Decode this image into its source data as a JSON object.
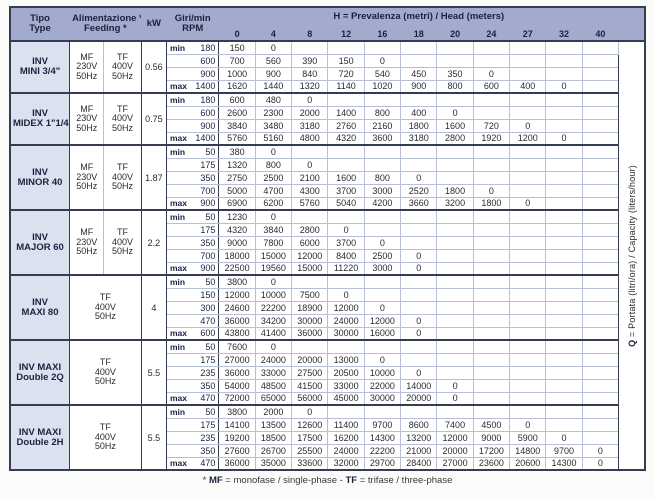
{
  "page": {
    "footnote_segments": [
      {
        "text": "* ",
        "bold": false
      },
      {
        "text": "MF",
        "bold": true
      },
      {
        "text": " = monofase / single-phase - ",
        "bold": false
      },
      {
        "text": "TF",
        "bold": true
      },
      {
        "text": " = trifase / three-phase",
        "bold": false
      }
    ],
    "colors": {
      "header_bg": "#a2abce",
      "model_bg": "#dce1ef",
      "header_text": "#1b2240",
      "grid_line": "#b6bfd8",
      "block_line": "#363c52"
    }
  },
  "table": {
    "header": {
      "type_lines": [
        "Tipo",
        "Type"
      ],
      "feeding_lines": [
        "Alimentazione *",
        "Feeding *"
      ],
      "kw_label": "kW",
      "rpm_lines": [
        "Giri/min",
        "RPM"
      ],
      "head_title_prefix": "H",
      "head_title_rest": " = Prevalenza (metri) / Head (meters)",
      "head_values": [
        "0",
        "4",
        "8",
        "12",
        "16",
        "18",
        "20",
        "24",
        "27",
        "32",
        "40"
      ],
      "q_label_prefix": "Q",
      "q_label_rest": " = Portata (litri/ora) / Capacity (liters/hour)"
    },
    "blocks": [
      {
        "model_lines": [
          "INV",
          "MINI 3/4\""
        ],
        "feeding": [
          [
            "MF",
            "230V",
            "50Hz"
          ],
          [
            "TF",
            "400V",
            "50Hz"
          ]
        ],
        "kw": "0.56",
        "rows": [
          {
            "tag": "min",
            "rpm": "180",
            "values": [
              "150",
              "0"
            ]
          },
          {
            "tag": "",
            "rpm": "600",
            "values": [
              "700",
              "560",
              "390",
              "150",
              "0"
            ]
          },
          {
            "tag": "",
            "rpm": "900",
            "values": [
              "1000",
              "900",
              "840",
              "720",
              "540",
              "450",
              "350",
              "0"
            ]
          },
          {
            "tag": "max",
            "rpm": "1400",
            "values": [
              "1620",
              "1440",
              "1320",
              "1140",
              "1020",
              "900",
              "800",
              "600",
              "400",
              "0"
            ]
          }
        ]
      },
      {
        "model_lines": [
          "INV",
          "MIDEX 1\"1/4"
        ],
        "feeding": [
          [
            "MF",
            "230V",
            "50Hz"
          ],
          [
            "TF",
            "400V",
            "50Hz"
          ]
        ],
        "kw": "0.75",
        "rows": [
          {
            "tag": "min",
            "rpm": "180",
            "values": [
              "600",
              "480",
              "0"
            ]
          },
          {
            "tag": "",
            "rpm": "600",
            "values": [
              "2600",
              "2300",
              "2000",
              "1400",
              "800",
              "400",
              "0"
            ]
          },
          {
            "tag": "",
            "rpm": "900",
            "values": [
              "3840",
              "3480",
              "3180",
              "2760",
              "2160",
              "1800",
              "1600",
              "720",
              "0"
            ]
          },
          {
            "tag": "max",
            "rpm": "1400",
            "values": [
              "5760",
              "5160",
              "4800",
              "4320",
              "3600",
              "3180",
              "2800",
              "1920",
              "1200",
              "0"
            ]
          }
        ]
      },
      {
        "model_lines": [
          "INV",
          "MINOR 40"
        ],
        "feeding": [
          [
            "MF",
            "230V",
            "50Hz"
          ],
          [
            "TF",
            "400V",
            "50Hz"
          ]
        ],
        "kw": "1.87",
        "rows": [
          {
            "tag": "min",
            "rpm": "50",
            "values": [
              "380",
              "0"
            ]
          },
          {
            "tag": "",
            "rpm": "175",
            "values": [
              "1320",
              "800",
              "0"
            ]
          },
          {
            "tag": "",
            "rpm": "350",
            "values": [
              "2750",
              "2500",
              "2100",
              "1600",
              "800",
              "0"
            ]
          },
          {
            "tag": "",
            "rpm": "700",
            "values": [
              "5000",
              "4700",
              "4300",
              "3700",
              "3000",
              "2520",
              "1800",
              "0"
            ]
          },
          {
            "tag": "max",
            "rpm": "900",
            "values": [
              "6900",
              "6200",
              "5760",
              "5040",
              "4200",
              "3660",
              "3200",
              "1800",
              "0"
            ]
          }
        ]
      },
      {
        "model_lines": [
          "INV",
          "MAJOR 60"
        ],
        "feeding": [
          [
            "MF",
            "230V",
            "50Hz"
          ],
          [
            "TF",
            "400V",
            "50Hz"
          ]
        ],
        "kw": "2.2",
        "rows": [
          {
            "tag": "min",
            "rpm": "50",
            "values": [
              "1230",
              "0"
            ]
          },
          {
            "tag": "",
            "rpm": "175",
            "values": [
              "4320",
              "3840",
              "2800",
              "0"
            ]
          },
          {
            "tag": "",
            "rpm": "350",
            "values": [
              "9000",
              "7800",
              "6000",
              "3700",
              "0"
            ]
          },
          {
            "tag": "",
            "rpm": "700",
            "values": [
              "18000",
              "15000",
              "12000",
              "8400",
              "2500",
              "0"
            ]
          },
          {
            "tag": "max",
            "rpm": "900",
            "values": [
              "22500",
              "19560",
              "15000",
              "11220",
              "3000",
              "0"
            ]
          }
        ]
      },
      {
        "model_lines": [
          "INV",
          "MAXI 80"
        ],
        "feeding": [
          [
            "TF",
            "400V",
            "50Hz"
          ]
        ],
        "kw": "4",
        "rows": [
          {
            "tag": "min",
            "rpm": "50",
            "values": [
              "3800",
              "0"
            ]
          },
          {
            "tag": "",
            "rpm": "150",
            "values": [
              "12000",
              "10000",
              "7500",
              "0"
            ]
          },
          {
            "tag": "",
            "rpm": "300",
            "values": [
              "24600",
              "22200",
              "18900",
              "12000",
              "0"
            ]
          },
          {
            "tag": "",
            "rpm": "470",
            "values": [
              "36000",
              "34200",
              "30000",
              "24000",
              "12000",
              "0"
            ]
          },
          {
            "tag": "max",
            "rpm": "600",
            "values": [
              "43800",
              "41400",
              "36000",
              "30000",
              "16000",
              "0"
            ]
          }
        ]
      },
      {
        "model_lines": [
          "INV MAXI",
          "Double 2Q"
        ],
        "feeding": [
          [
            "TF",
            "400V",
            "50Hz"
          ]
        ],
        "kw": "5.5",
        "rows": [
          {
            "tag": "min",
            "rpm": "50",
            "values": [
              "7600",
              "0"
            ]
          },
          {
            "tag": "",
            "rpm": "175",
            "values": [
              "27000",
              "24000",
              "20000",
              "13000",
              "0"
            ]
          },
          {
            "tag": "",
            "rpm": "235",
            "values": [
              "36000",
              "33000",
              "27500",
              "20500",
              "10000",
              "0"
            ]
          },
          {
            "tag": "",
            "rpm": "350",
            "values": [
              "54000",
              "48500",
              "41500",
              "33000",
              "22000",
              "14000",
              "0"
            ]
          },
          {
            "tag": "max",
            "rpm": "470",
            "values": [
              "72000",
              "65000",
              "56000",
              "45000",
              "30000",
              "20000",
              "0"
            ]
          }
        ]
      },
      {
        "model_lines": [
          "INV MAXI",
          "Double 2H"
        ],
        "feeding": [
          [
            "TF",
            "400V",
            "50Hz"
          ]
        ],
        "kw": "5.5",
        "rows": [
          {
            "tag": "min",
            "rpm": "50",
            "values": [
              "3800",
              "2000",
              "0"
            ]
          },
          {
            "tag": "",
            "rpm": "175",
            "values": [
              "14100",
              "13500",
              "12600",
              "11400",
              "9700",
              "8600",
              "7400",
              "4500",
              "0"
            ]
          },
          {
            "tag": "",
            "rpm": "235",
            "values": [
              "19200",
              "18500",
              "17500",
              "16200",
              "14300",
              "13200",
              "12000",
              "9000",
              "5900",
              "0"
            ]
          },
          {
            "tag": "",
            "rpm": "350",
            "values": [
              "27600",
              "26700",
              "25500",
              "24000",
              "22200",
              "21000",
              "20000",
              "17200",
              "14800",
              "9700",
              "0"
            ]
          },
          {
            "tag": "max",
            "rpm": "470",
            "values": [
              "36000",
              "35000",
              "33600",
              "32000",
              "29700",
              "28400",
              "27000",
              "23600",
              "20600",
              "14300",
              "0"
            ]
          }
        ]
      }
    ]
  }
}
